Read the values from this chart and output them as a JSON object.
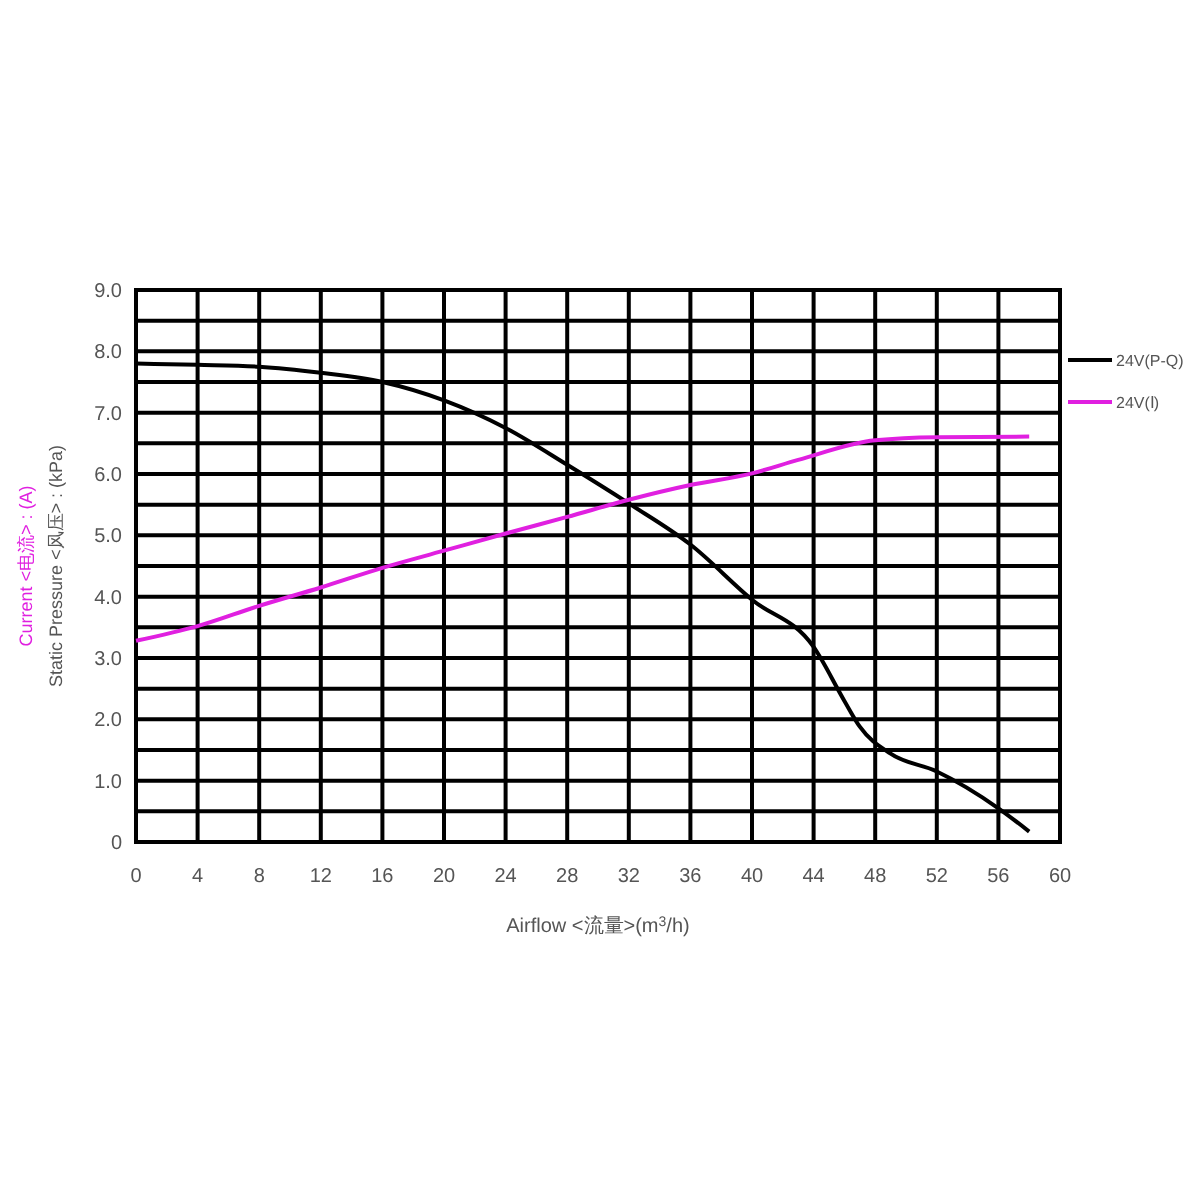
{
  "chart_data": {
    "type": "line",
    "xlabel": "Airflow  <流量>(m$^{3}$/h)",
    "ylabel": "Static Pressure <风压> : (kPa)",
    "y2label": "Current <电流> : (A)",
    "xlim": [
      0,
      60
    ],
    "xticks": [
      0,
      4,
      8,
      12,
      16,
      20,
      24,
      28,
      32,
      36,
      40,
      44,
      48,
      52,
      56,
      60
    ],
    "ylim": [
      0,
      9
    ],
    "yticks": [
      0,
      {
        "value": 0.5,
        "label": null
      },
      "1.0",
      {
        "value": 1.5,
        "label": null
      },
      {
        "value": 2,
        "label": "2.0"
      },
      {
        "value": 2.5,
        "label": null
      },
      {
        "value": 3,
        "label": "3.0"
      },
      {
        "value": 3.5,
        "label": null
      },
      {
        "value": 4,
        "label": "4.0"
      },
      {
        "value": 4.5,
        "label": null
      },
      {
        "value": 5,
        "label": "5.0"
      },
      {
        "value": 5.5,
        "label": null
      },
      {
        "value": 6,
        "label": "6.0"
      },
      {
        "value": 6.5,
        "label": null
      },
      {
        "value": 7,
        "label": "7.0"
      },
      {
        "value": 7.5,
        "label": null
      },
      {
        "value": 8,
        "label": "8.0"
      },
      {
        "value": 8.5,
        "label": null
      },
      {
        "value": 9,
        "label": "9.0"
      }
    ],
    "grid": true,
    "legend": "right",
    "marker": "none",
    "line_style": "solid",
    "series": [
      {
        "name": "24V(P-Q)",
        "color": "#000000",
        "x": [
          0,
          4,
          8,
          12,
          16,
          20,
          24,
          28,
          32,
          36,
          40,
          44,
          46,
          47,
          49,
          52,
          56,
          58
        ],
        "values": [
          7.8,
          7.78,
          7.75,
          7.65,
          7.5,
          7.2,
          6.75,
          6.15,
          5.52,
          4.85,
          3.95,
          3.18,
          2.3,
          1.88,
          1.44,
          1.15,
          0.55,
          0.17
        ]
      },
      {
        "name": "24V(Ⅰ)",
        "color": "#e020e0",
        "x": [
          0,
          4,
          8,
          12,
          16,
          20,
          24,
          28,
          32,
          36,
          40,
          43,
          48,
          52,
          58
        ],
        "values": [
          3.28,
          3.52,
          3.85,
          4.15,
          4.47,
          4.75,
          5.03,
          5.3,
          5.58,
          5.82,
          6.01,
          6.23,
          6.55,
          6.6,
          6.61
        ]
      }
    ]
  }
}
